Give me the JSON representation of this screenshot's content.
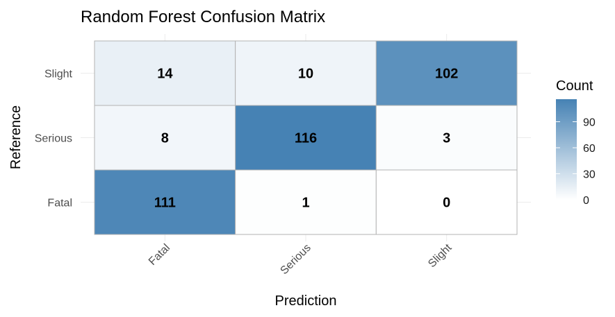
{
  "chart_data": {
    "type": "heatmap",
    "title": "Random Forest Confusion Matrix",
    "xlabel": "Prediction",
    "ylabel": "Reference",
    "x_categories": [
      "Fatal",
      "Serious",
      "Slight"
    ],
    "y_categories": [
      "Fatal",
      "Serious",
      "Slight"
    ],
    "cells": [
      {
        "reference": "Slight",
        "prediction": "Fatal",
        "value": 14
      },
      {
        "reference": "Slight",
        "prediction": "Serious",
        "value": 10
      },
      {
        "reference": "Slight",
        "prediction": "Slight",
        "value": 102
      },
      {
        "reference": "Serious",
        "prediction": "Fatal",
        "value": 8
      },
      {
        "reference": "Serious",
        "prediction": "Serious",
        "value": 116
      },
      {
        "reference": "Serious",
        "prediction": "Slight",
        "value": 3
      },
      {
        "reference": "Fatal",
        "prediction": "Fatal",
        "value": 111
      },
      {
        "reference": "Fatal",
        "prediction": "Serious",
        "value": 1
      },
      {
        "reference": "Fatal",
        "prediction": "Slight",
        "value": 0
      }
    ],
    "legend": {
      "title": "Count",
      "ticks": [
        0,
        30,
        60,
        90
      ],
      "range": [
        0,
        116
      ],
      "placement": "right"
    },
    "colors": {
      "low": "#ffffff",
      "high": "#4682b4"
    },
    "grid": true
  }
}
